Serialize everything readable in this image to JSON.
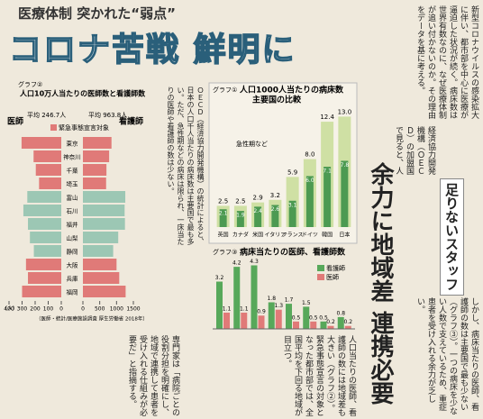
{
  "headline": {
    "kicker": "医療体制 突かれた“弱点”",
    "title": "コロナ苦戦 鮮明に"
  },
  "lead": "新型コロナウイルスの感染拡大に伴い、都市部を中心に医療が逼迫した状況が続く。病床数は世界有数なのに、なぜ医療体制が追い付かないのか。その理由をデータを基に考える。",
  "middle_text": "ＯＥＣＤ（経済協力開発機構）の統計によると、日本の人口千人当たりの病床数は主要国で最も多い。ただ、急性期などの病床は限られ、一床当たりの医師や看護師の数は少ない。",
  "chart1": {
    "type": "bar",
    "label": "グラフ①",
    "title": "人口1000人当たりの病床数",
    "subtitle": "主要国の比較",
    "legend": "急性期など",
    "categories": [
      "英国",
      "カナダ",
      "米国",
      "イタリア",
      "フランス",
      "ドイツ",
      "韓国",
      "日本"
    ],
    "total": [
      2.5,
      2.5,
      2.9,
      3.2,
      5.9,
      8.0,
      12.4,
      13.0
    ],
    "total_labels": [
      "2.5",
      "2.5",
      "2.9",
      "3.2",
      "5.9",
      "8.0",
      "12.4",
      "13.0"
    ],
    "acute": [
      2.1,
      1.9,
      2.4,
      2.6,
      3.1,
      6.0,
      7.1,
      7.8
    ],
    "acute_labels": [
      "2.1",
      "1.9",
      "2.4",
      "2.6",
      "3.1",
      "6.0",
      "7.1",
      "7.8"
    ],
    "ylim": [
      0,
      14
    ],
    "total_color": "#cfe0a4",
    "acute_color": "#4c9a52"
  },
  "chart2": {
    "type": "butterfly",
    "label": "グラフ②",
    "title": "人口10万人当たりの医師数と看護師数",
    "doctor_label": "医師",
    "nurse_label": "看護師",
    "doctor_avg": "平均 246.7人",
    "nurse_avg": "平均 963.8人",
    "legend": "緊急事態宣言対象",
    "unit": "（人）",
    "source": "（医師・統計/医療施設調査 厚生労働省 2018年）",
    "rows": [
      {
        "name": "東京",
        "doctors": 304,
        "nurses": 850,
        "emergency": true
      },
      {
        "name": "神奈川",
        "doctors": 212,
        "nurses": 780,
        "emergency": true
      },
      {
        "name": "千葉",
        "doctors": 195,
        "nurses": 700,
        "emergency": true
      },
      {
        "name": "埼玉",
        "doctors": 170,
        "nurses": 690,
        "emergency": true
      },
      {
        "name": "富山",
        "doctors": 260,
        "nurses": 1260,
        "emergency": false
      },
      {
        "name": "石川",
        "doctors": 290,
        "nurses": 1240,
        "emergency": false
      },
      {
        "name": "福井",
        "doctors": 255,
        "nurses": 1250,
        "emergency": false
      },
      {
        "name": "山梨",
        "doctors": 240,
        "nurses": 1050,
        "emergency": false
      },
      {
        "name": "静岡",
        "doctors": 210,
        "nurses": 900,
        "emergency": false
      },
      {
        "name": "大阪",
        "doctors": 270,
        "nurses": 1000,
        "emergency": true
      },
      {
        "name": "兵庫",
        "doctors": 255,
        "nurses": 1080,
        "emergency": true
      },
      {
        "name": "福岡",
        "doctors": 300,
        "nurses": 1270,
        "emergency": true
      }
    ],
    "doctor_lim": [
      0,
      400
    ],
    "doctor_ticks": [
      400,
      300,
      200,
      100,
      0
    ],
    "nurse_lim": [
      0,
      1500
    ],
    "nurse_ticks": [
      0,
      500,
      1000,
      1500
    ],
    "emergency_color": "#e07a78",
    "other_color": "#9cc7b4"
  },
  "chart3": {
    "type": "bar",
    "label": "グラフ③",
    "title": "病床当たりの医師、看護師数",
    "categories": [
      "英国",
      "カナダ",
      "米国",
      "イタリア",
      "フランス",
      "ドイツ",
      "韓国",
      "日本"
    ],
    "series": [
      {
        "name": "看護師",
        "color": "#57a85a",
        "values": [
          3.2,
          4.2,
          4.3,
          1.8,
          1.7,
          1.5,
          0.5,
          0.8
        ],
        "value_labels": [
          "3.2",
          "4.2",
          "4.3",
          "1.8",
          "1.7",
          "1.5",
          "0.5",
          "0.8"
        ]
      },
      {
        "name": "医師",
        "color": "#e07a78",
        "values": [
          1.1,
          1.1,
          0.9,
          1.3,
          0.5,
          0.5,
          0.2,
          0.2
        ],
        "value_labels": [
          "1.1",
          "1.1",
          "0.9",
          "1.3",
          "0.5",
          "0.5",
          "0.2",
          "0.2"
        ]
      }
    ],
    "ylim": [
      0,
      5
    ]
  },
  "subhead": {
    "kicker": "足りないスタッフ",
    "title": "余力に地域差 連携必要"
  },
  "body": [
    "経済協力開発機構（ＯＥＣＤ）の加盟国で見ると、人口千人当たりの病床数は日本が一三・〇床でトップ。新型コロナに対応できる急性期などの病床も七・八床と多い（グラフ①）。",
    "しかし、病床当たりの医師、看護師の数は主要国で最も少ない（グラフ③）。一つの病床を少ない人数で支えているため、重症患者を受け入れる余力が乏しい。",
    "人口当たりの医師、看護師の数には地域差も大きい（グラフ②）。緊急事態宣言の対象となった都市部では、全国平均を下回る地域が目立つ。",
    "専門家は「病院ごとの役割分担を明確にし、地域で連携して患者を受け入れる仕組みが必要だ」と指摘する。"
  ]
}
